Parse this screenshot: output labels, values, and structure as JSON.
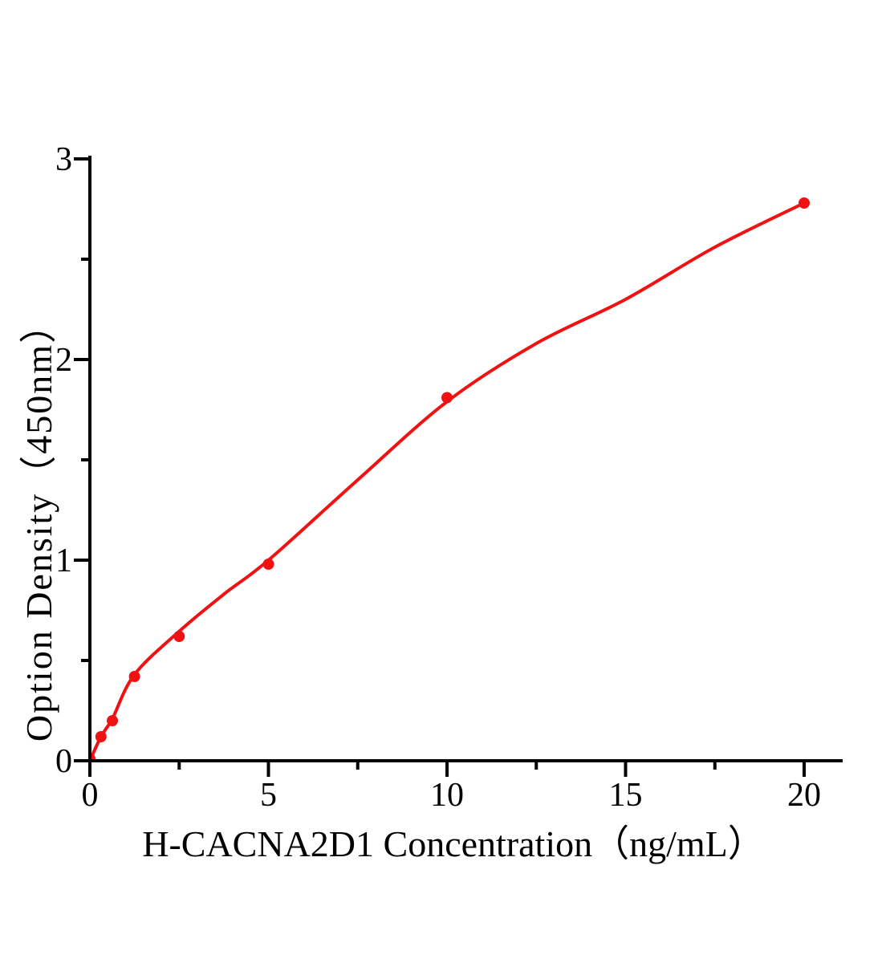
{
  "page": {
    "background_color": "#ffffff"
  },
  "chart_data": {
    "type": "scatter",
    "title": "",
    "xlabel": "H-CACNA2D1 Concentration（ng/mL）",
    "ylabel": "Option Density（450nm）",
    "xlim": [
      0,
      21
    ],
    "ylim": [
      0,
      3
    ],
    "grid": false,
    "legend": "none",
    "axis_color": "#000000",
    "series_color": "#f01212",
    "x_ticks": {
      "major": [
        0,
        5,
        10,
        15,
        20
      ],
      "minor": [
        2.5,
        7.5,
        12.5,
        17.5
      ],
      "major_labels": [
        "0",
        "5",
        "10",
        "15",
        "20"
      ]
    },
    "y_ticks": {
      "major": [
        0,
        1,
        2,
        3
      ],
      "minor": [
        0.5,
        1.5,
        2.5
      ],
      "major_labels": [
        "0",
        "1",
        "2",
        "3"
      ]
    },
    "series": [
      {
        "name": "standard-data-points",
        "type": "scatter",
        "marker": "circle",
        "color": "#f01212",
        "x": [
          0,
          0.31,
          0.63,
          1.25,
          2.5,
          5,
          10,
          20
        ],
        "y": [
          0.01,
          0.12,
          0.2,
          0.42,
          0.62,
          0.98,
          1.81,
          2.78
        ]
      },
      {
        "name": "fit-curve",
        "type": "line",
        "color": "#f01212",
        "x": [
          0,
          0.31,
          0.63,
          1.25,
          2.5,
          3.75,
          5,
          7.5,
          10,
          12.5,
          15,
          17.5,
          20
        ],
        "y": [
          0,
          0.12,
          0.21,
          0.43,
          0.645,
          0.83,
          1.0,
          1.4,
          1.79,
          2.08,
          2.3,
          2.56,
          2.78
        ]
      }
    ]
  }
}
